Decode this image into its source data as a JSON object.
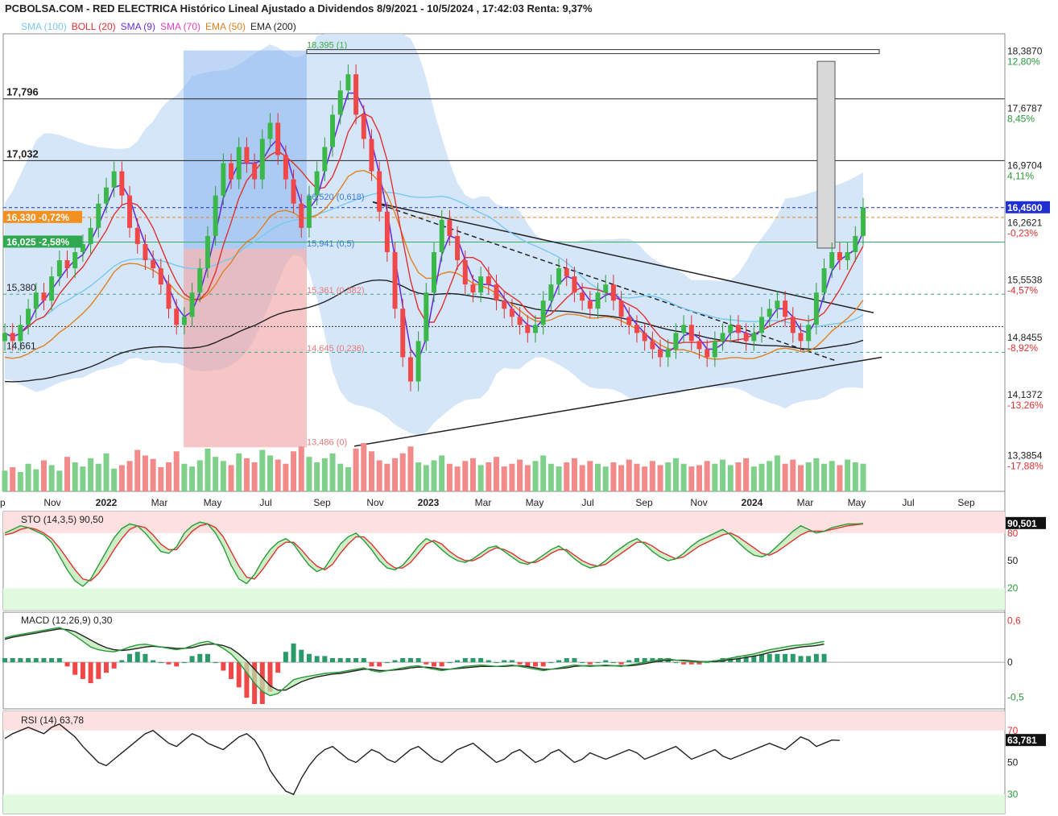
{
  "title": "PCBOLSA.COM - RED ELECTRICA Histórico Lineal Ajustado a Dividendos 8/9/2021 - 10/5/2024 , 17:42:03 Renta: 9,37%",
  "legend": [
    {
      "label": "SMA (100)",
      "color": "#78c8f0"
    },
    {
      "label": "BOLL (20)",
      "color": "#e03030"
    },
    {
      "label": "SMA (9)",
      "color": "#6a2ee0"
    },
    {
      "label": "SMA (70)",
      "color": "#e040c0"
    },
    {
      "label": "EMA (50)",
      "color": "#e08020"
    },
    {
      "label": "EMA (200)",
      "color": "#222222"
    }
  ],
  "colors": {
    "up": "#3bb84a",
    "down": "#f04848",
    "boll_fill": "#cfe2f8",
    "stroke_up": "#1a7a2a"
  },
  "chart_data": [
    {
      "type": "candlestick",
      "name": "price",
      "x_axis_labels": [
        "p",
        "Nov",
        "2022",
        "Mar",
        "May",
        "Jul",
        "Sep",
        "Nov",
        "2023",
        "Mar",
        "May",
        "Jul",
        "Sep",
        "Nov",
        "2024",
        "Mar",
        "May",
        "Jul",
        "Sep"
      ],
      "ylim": [
        13.2,
        18.6
      ],
      "right_axis": [
        {
          "value": "18,3870",
          "pct": "12,80%"
        },
        {
          "value": "17,6787",
          "pct": "8,45%"
        },
        {
          "value": "16,9704",
          "pct": "4,11%"
        },
        {
          "value": "16,2621",
          "pct": "-0,23%"
        },
        {
          "value": "15,5538",
          "pct": "-4,57%"
        },
        {
          "value": "14,8455",
          "pct": "-8,92%"
        },
        {
          "value": "14,1372",
          "pct": "-13,26%"
        },
        {
          "value": "13,3854",
          "pct": "-17,88%"
        }
      ],
      "last_price": "16,4500",
      "horizontal_levels": [
        {
          "label": "17,796",
          "value": 17.796
        },
        {
          "label": "17,032",
          "value": 17.032
        },
        {
          "label": "16,330 -0,72%",
          "value": 16.33
        },
        {
          "label": "16,025 -2,58%",
          "value": 16.025
        },
        {
          "label": "15,380",
          "value": 15.38
        },
        {
          "label": "14,661",
          "value": 14.661
        }
      ],
      "fibonacci": [
        {
          "label": "18,395 (1)",
          "value": 18.395
        },
        {
          "label": "16,520 (0,618)",
          "value": 16.52
        },
        {
          "label": "15,941 (0,5)",
          "value": 15.941
        },
        {
          "label": "15,361 (0,382)",
          "value": 15.361
        },
        {
          "label": "14,645 (0,236)",
          "value": 14.645
        },
        {
          "label": "13,486 (0)",
          "value": 13.486
        }
      ],
      "close": [
        14.9,
        14.8,
        15.0,
        15.2,
        15.4,
        15.3,
        15.6,
        15.8,
        15.7,
        15.9,
        16.0,
        16.2,
        16.5,
        16.7,
        16.9,
        16.6,
        16.2,
        16.0,
        15.8,
        15.7,
        15.5,
        15.2,
        15.0,
        15.1,
        15.4,
        15.7,
        16.1,
        16.6,
        17.0,
        16.8,
        17.2,
        17.0,
        16.8,
        17.3,
        17.5,
        17.1,
        16.8,
        16.5,
        16.2,
        16.6,
        16.9,
        17.2,
        17.6,
        17.9,
        18.1,
        17.6,
        17.3,
        16.9,
        16.4,
        15.9,
        15.2,
        14.6,
        14.3,
        14.8,
        15.4,
        15.9,
        16.3,
        16.1,
        15.8,
        15.5,
        15.4,
        15.6,
        15.5,
        15.3,
        15.2,
        15.1,
        15.0,
        14.9,
        15.0,
        15.3,
        15.5,
        15.7,
        15.6,
        15.4,
        15.3,
        15.2,
        15.4,
        15.5,
        15.3,
        15.1,
        15.0,
        14.9,
        14.8,
        14.7,
        14.6,
        14.7,
        14.9,
        15.0,
        14.8,
        14.7,
        14.6,
        14.8,
        14.9,
        15.0,
        14.9,
        14.8,
        14.9,
        15.1,
        15.2,
        15.3,
        15.1,
        14.9,
        14.8,
        15.0,
        15.4,
        15.7,
        15.9,
        15.8,
        15.9,
        16.1,
        16.45
      ],
      "volume": [
        30,
        35,
        28,
        40,
        32,
        45,
        38,
        30,
        50,
        42,
        36,
        48,
        40,
        55,
        33,
        38,
        44,
        60,
        52,
        47,
        35,
        42,
        58,
        40,
        36,
        45,
        62,
        50,
        44,
        38,
        55,
        48,
        42,
        60,
        52,
        46,
        40,
        58,
        65,
        50,
        42,
        48,
        55,
        40,
        35,
        62,
        70,
        58,
        45,
        40,
        48,
        55,
        65,
        42,
        38,
        45,
        52,
        40,
        36,
        44,
        48,
        38,
        42,
        50,
        36,
        40,
        46,
        38,
        44,
        52,
        40,
        36,
        42,
        48,
        38,
        44,
        40,
        36,
        42,
        38,
        46,
        40,
        36,
        44,
        38,
        42,
        48,
        40,
        36,
        38,
        44,
        40,
        46,
        38,
        42,
        48,
        36,
        40,
        44,
        52,
        40,
        46,
        38,
        42,
        48,
        40,
        44,
        38,
        46,
        42,
        40
      ],
      "indicators": [
        "SMA (100)",
        "BOLL (20)",
        "SMA (9)",
        "SMA (70)",
        "EMA (50)",
        "EMA (200)"
      ]
    },
    {
      "type": "line",
      "name": "STO (14,3,5)",
      "header_value": "90,50",
      "last_value": "90,501",
      "ylim": [
        0,
        100
      ],
      "y_ticks": [
        "80",
        "50",
        "20"
      ],
      "k": [
        80,
        84,
        88,
        86,
        82,
        78,
        70,
        55,
        40,
        28,
        22,
        30,
        45,
        60,
        75,
        85,
        90,
        88,
        80,
        70,
        60,
        58,
        65,
        80,
        88,
        92,
        90,
        80,
        65,
        45,
        30,
        25,
        35,
        50,
        62,
        70,
        74,
        68,
        56,
        45,
        38,
        42,
        55,
        68,
        76,
        80,
        72,
        62,
        50,
        42,
        40,
        45,
        55,
        66,
        74,
        70,
        62,
        55,
        50,
        48,
        52,
        58,
        64,
        66,
        60,
        54,
        48,
        46,
        50,
        56,
        62,
        66,
        60,
        52,
        46,
        42,
        44,
        50,
        58,
        64,
        70,
        74,
        68,
        60,
        54,
        50,
        52,
        58,
        66,
        72,
        76,
        80,
        84,
        78,
        70,
        62,
        56,
        54,
        58,
        66,
        74,
        82,
        88,
        84,
        80,
        82,
        86,
        88,
        90,
        90,
        90.5
      ],
      "d": [
        78,
        80,
        84,
        86,
        84,
        80,
        74,
        64,
        52,
        40,
        30,
        28,
        36,
        48,
        62,
        74,
        84,
        88,
        86,
        78,
        68,
        62,
        62,
        72,
        82,
        88,
        90,
        86,
        76,
        60,
        44,
        32,
        30,
        40,
        52,
        64,
        70,
        70,
        62,
        52,
        44,
        40,
        46,
        58,
        68,
        76,
        76,
        68,
        58,
        48,
        42,
        42,
        48,
        58,
        68,
        72,
        68,
        60,
        54,
        50,
        50,
        54,
        60,
        64,
        62,
        58,
        52,
        48,
        48,
        52,
        58,
        62,
        62,
        56,
        50,
        46,
        44,
        46,
        52,
        58,
        64,
        70,
        70,
        66,
        60,
        56,
        52,
        54,
        60,
        66,
        70,
        74,
        78,
        80,
        76,
        70,
        64,
        58,
        56,
        60,
        66,
        72,
        78,
        82,
        82,
        82,
        84,
        86,
        88,
        89,
        90
      ]
    },
    {
      "type": "line",
      "name": "MACD (12,26,9)",
      "header_value": "0,30",
      "ylim": [
        -0.6,
        0.65
      ],
      "y_ticks": [
        "0,6",
        "0",
        "-0,5"
      ],
      "macd": [
        0.35,
        0.38,
        0.4,
        0.42,
        0.44,
        0.46,
        0.48,
        0.5,
        0.45,
        0.38,
        0.3,
        0.22,
        0.18,
        0.16,
        0.15,
        0.18,
        0.22,
        0.25,
        0.26,
        0.24,
        0.22,
        0.2,
        0.18,
        0.2,
        0.24,
        0.28,
        0.3,
        0.26,
        0.2,
        0.12,
        0.0,
        -0.15,
        -0.3,
        -0.42,
        -0.48,
        -0.45,
        -0.35,
        -0.25,
        -0.22,
        -0.2,
        -0.18,
        -0.16,
        -0.15,
        -0.14,
        -0.12,
        -0.1,
        -0.08,
        -0.12,
        -0.14,
        -0.12,
        -0.1,
        -0.08,
        -0.06,
        -0.05,
        -0.08,
        -0.1,
        -0.12,
        -0.1,
        -0.08,
        -0.06,
        -0.05,
        -0.04,
        -0.05,
        -0.06,
        -0.05,
        -0.04,
        -0.06,
        -0.08,
        -0.1,
        -0.12,
        -0.1,
        -0.08,
        -0.06,
        -0.04,
        -0.05,
        -0.06,
        -0.05,
        -0.04,
        -0.05,
        -0.06,
        -0.04,
        -0.02,
        0.0,
        0.02,
        0.04,
        0.05,
        0.03,
        0.02,
        0.01,
        0.0,
        0.01,
        0.02,
        0.04,
        0.06,
        0.08,
        0.1,
        0.12,
        0.15,
        0.18,
        0.2,
        0.22,
        0.24,
        0.25,
        0.26,
        0.28,
        0.3
      ],
      "signal": [
        0.33,
        0.36,
        0.38,
        0.4,
        0.42,
        0.44,
        0.46,
        0.48,
        0.47,
        0.44,
        0.38,
        0.32,
        0.26,
        0.21,
        0.18,
        0.17,
        0.18,
        0.2,
        0.22,
        0.23,
        0.22,
        0.21,
        0.2,
        0.2,
        0.21,
        0.24,
        0.26,
        0.26,
        0.24,
        0.2,
        0.12,
        0.02,
        -0.1,
        -0.22,
        -0.34,
        -0.4,
        -0.4,
        -0.34,
        -0.28,
        -0.24,
        -0.21,
        -0.19,
        -0.17,
        -0.16,
        -0.14,
        -0.12,
        -0.1,
        -0.1,
        -0.12,
        -0.12,
        -0.11,
        -0.1,
        -0.08,
        -0.07,
        -0.07,
        -0.08,
        -0.1,
        -0.1,
        -0.09,
        -0.08,
        -0.07,
        -0.06,
        -0.06,
        -0.06,
        -0.06,
        -0.05,
        -0.05,
        -0.06,
        -0.08,
        -0.1,
        -0.1,
        -0.09,
        -0.08,
        -0.06,
        -0.05,
        -0.05,
        -0.05,
        -0.05,
        -0.05,
        -0.05,
        -0.05,
        -0.04,
        -0.02,
        0.0,
        0.02,
        0.03,
        0.03,
        0.03,
        0.02,
        0.01,
        0.01,
        0.01,
        0.02,
        0.04,
        0.05,
        0.07,
        0.09,
        0.11,
        0.14,
        0.16,
        0.18,
        0.2,
        0.22,
        0.23,
        0.24,
        0.26
      ]
    },
    {
      "type": "line",
      "name": "RSI (14)",
      "header_value": "63,78",
      "last_value": "63,781",
      "ylim": [
        20,
        80
      ],
      "y_ticks": [
        "70",
        "50",
        "30"
      ],
      "values": [
        65,
        68,
        70,
        72,
        70,
        68,
        72,
        74,
        70,
        66,
        60,
        55,
        50,
        48,
        52,
        56,
        60,
        64,
        68,
        70,
        66,
        62,
        60,
        64,
        68,
        66,
        62,
        60,
        58,
        62,
        66,
        68,
        64,
        56,
        45,
        38,
        32,
        30,
        40,
        48,
        54,
        58,
        60,
        56,
        52,
        50,
        54,
        58,
        56,
        52,
        50,
        54,
        58,
        60,
        56,
        52,
        50,
        54,
        58,
        60,
        62,
        58,
        54,
        50,
        52,
        56,
        58,
        54,
        50,
        52,
        56,
        58,
        54,
        50,
        52,
        56,
        54,
        52,
        54,
        56,
        58,
        56,
        52,
        54,
        56,
        58,
        60,
        56,
        52,
        54,
        56,
        58,
        54,
        52,
        54,
        56,
        58,
        60,
        62,
        60,
        58,
        62,
        66,
        64,
        60,
        62,
        64,
        63.78
      ]
    }
  ]
}
